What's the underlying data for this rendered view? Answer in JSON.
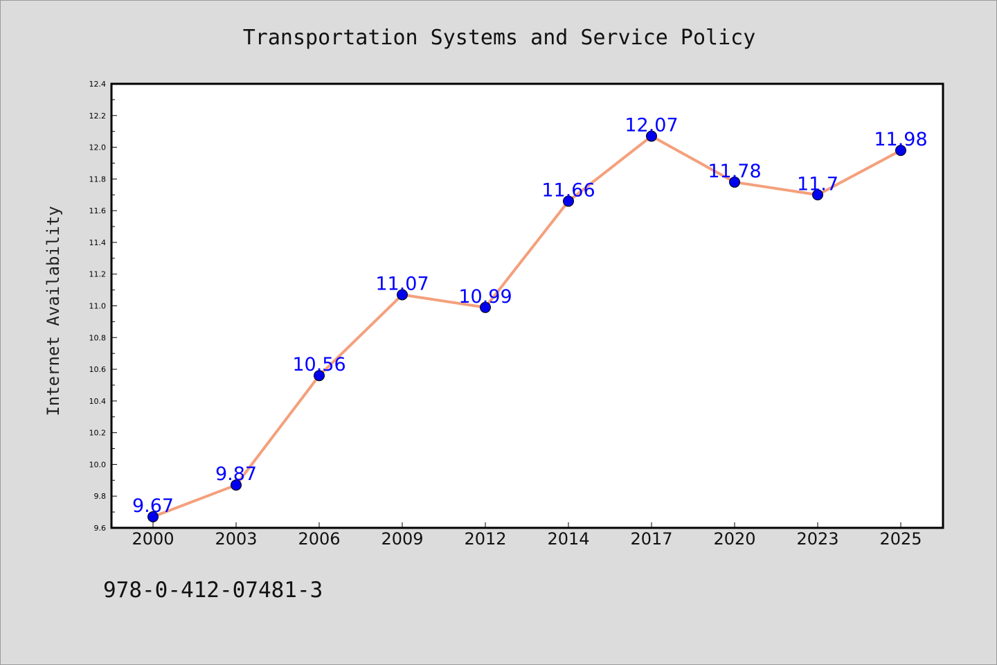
{
  "chart_data": {
    "type": "line",
    "title": "Transportation Systems and Service Policy",
    "xlabel": "",
    "ylabel": "Internet Availability",
    "categories": [
      "2000",
      "2003",
      "2006",
      "2009",
      "2012",
      "2014",
      "2017",
      "2020",
      "2023",
      "2025"
    ],
    "series": [
      {
        "values": [
          9.67,
          9.87,
          10.56,
          11.07,
          10.99,
          11.66,
          12.07,
          11.78,
          11.7,
          11.98
        ],
        "labels": [
          "9.67",
          "9.87",
          "10.56",
          "11.07",
          "10.99",
          "11.66",
          "12.07",
          "11.78",
          "11.7",
          "11.98"
        ],
        "line_color": "#f4a07c",
        "marker_color": "#0000ee"
      }
    ],
    "ylim": [
      9.6,
      12.4
    ],
    "y_ticks": [
      "9.6",
      "9.8",
      "10.0",
      "10.2",
      "10.4",
      "10.6",
      "10.8",
      "11.0",
      "11.2",
      "11.4",
      "11.6",
      "11.8",
      "12.0",
      "12.2",
      "12.4"
    ],
    "grid": false,
    "legend": "none",
    "label_color": "#0000ff"
  },
  "footer": {
    "identifier": "978-0-412-07481-3"
  },
  "colors": {
    "background": "#dcdcdc",
    "plot_background": "#ffffff"
  }
}
